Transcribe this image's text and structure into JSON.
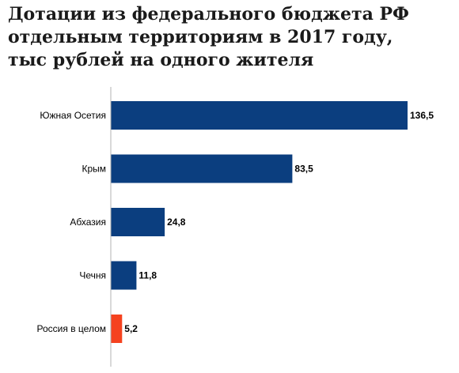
{
  "chart_data": {
    "type": "bar",
    "orientation": "horizontal",
    "title_lines": [
      "Дотации из федерального бюджета РФ",
      "отдельным территориям в 2017 году,",
      "тыс рублей на одного жителя"
    ],
    "categories": [
      "Южная Осетия",
      "Крым",
      "Абхазия",
      "Чечня",
      "Россия в целом"
    ],
    "values": [
      136.5,
      83.5,
      24.8,
      11.8,
      5.2
    ],
    "value_labels": [
      "136,5",
      "83,5",
      "24,8",
      "11,8",
      "5,2"
    ],
    "colors": [
      "#0b3e7f",
      "#0b3e7f",
      "#0b3e7f",
      "#0b3e7f",
      "#f5421f"
    ],
    "xlim": [
      0,
      150
    ],
    "grid": false,
    "legend": "none"
  }
}
